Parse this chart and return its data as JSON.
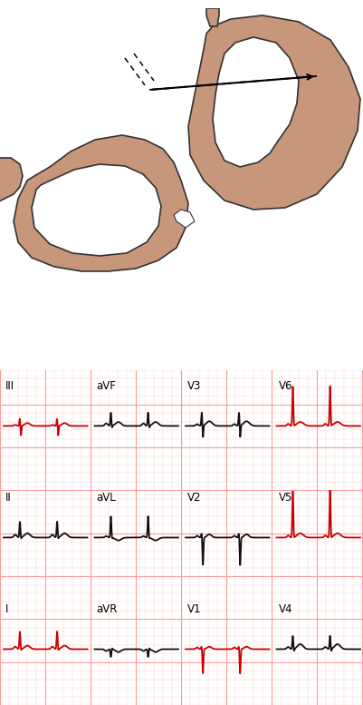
{
  "heart_color": "#C8967A",
  "heart_outline": "#333333",
  "ekg_bg": "#FFE8E8",
  "ekg_grid_major": "#FF9999",
  "ekg_grid_minor": "#FFCCCC",
  "ekg_black": "#111111",
  "ekg_red": "#CC0000",
  "fig_bg": "#FFFFFF",
  "heart_lw": 1.2,
  "ekg_lw": 1.3,
  "lead_layout": [
    [
      "I",
      0,
      2,
      "red"
    ],
    [
      "aVR",
      1,
      2,
      "black"
    ],
    [
      "V1",
      2,
      2,
      "red"
    ],
    [
      "V4",
      3,
      2,
      "black"
    ],
    [
      "II",
      0,
      1,
      "black"
    ],
    [
      "aVL",
      1,
      1,
      "black"
    ],
    [
      "V2",
      2,
      1,
      "black"
    ],
    [
      "V5",
      3,
      1,
      "red"
    ],
    [
      "III",
      0,
      0,
      "red"
    ],
    [
      "aVF",
      1,
      0,
      "black"
    ],
    [
      "V3",
      2,
      0,
      "black"
    ],
    [
      "V6",
      3,
      0,
      "red"
    ]
  ]
}
